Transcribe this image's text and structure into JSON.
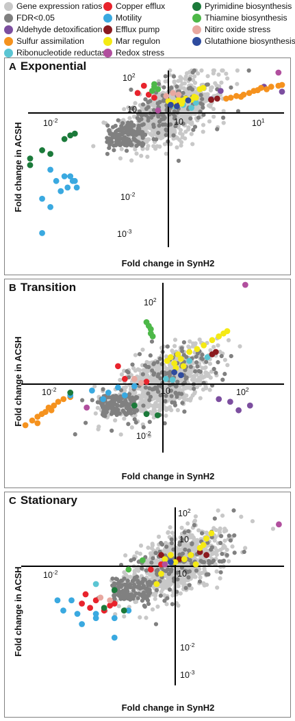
{
  "legend": {
    "items": [
      {
        "label": "Gene expression ratios",
        "color": "#c8c8c8"
      },
      {
        "label": "FDR<0.05",
        "color": "#808080"
      },
      {
        "label": "Aldehyde detoxification",
        "color": "#7c4e9f"
      },
      {
        "label": "Sulfur assimilation",
        "color": "#f5921e"
      },
      {
        "label": "Ribonucleotide reductase",
        "color": "#5bc5d3"
      },
      {
        "label": "Copper efflux",
        "color": "#e8232c"
      },
      {
        "label": "Motility",
        "color": "#3aa9e0"
      },
      {
        "label": "Efflux pump",
        "color": "#8b1a1f"
      },
      {
        "label": "Mar regulon",
        "color": "#f5ea14"
      },
      {
        "label": "Redox stress",
        "color": "#b14f9e"
      },
      {
        "label": "Pyrimidine biosynthesis",
        "color": "#1b7a3a"
      },
      {
        "label": "Thiamine biosynthesis",
        "color": "#4db848"
      },
      {
        "label": "Nitirc oxide stress",
        "color": "#e8a8a0"
      },
      {
        "label": "Glutathione biosynthesis",
        "color": "#2e4b9e"
      }
    ]
  },
  "chart_data": [
    {
      "type": "scatter",
      "panel_letter": "A",
      "title": "Exponential",
      "xlabel": "Fold change in SynH2",
      "ylabel": "Fold change in ACSH",
      "x_ticks": [
        {
          "base": "10",
          "exp": "-2"
        },
        {
          "base": "10",
          "exp": ""
        },
        {
          "base": "10",
          "exp": "1"
        }
      ],
      "y_ticks": [
        {
          "base": "10",
          "exp": "2"
        },
        {
          "base": "10",
          "exp": ""
        },
        {
          "base": "10",
          "exp": "-2"
        },
        {
          "base": "10",
          "exp": "-3"
        }
      ],
      "xlim_log10": [
        -3,
        2
      ],
      "ylim_log10": [
        -3.6,
        2.5
      ],
      "grid": false,
      "series": [
        {
          "name": "Aldehyde detoxification",
          "color": "#7c4e9f",
          "points": [
            [
              5.5,
              6.5
            ],
            [
              8,
              20
            ],
            [
              45,
              35
            ],
            [
              150,
              18
            ]
          ]
        },
        {
          "name": "Sulfur assimilation",
          "color": "#f5921e",
          "points": [
            [
              10,
              7
            ],
            [
              15,
              10
            ],
            [
              20,
              12
            ],
            [
              25,
              15
            ],
            [
              30,
              20
            ],
            [
              40,
              30
            ],
            [
              50,
              25
            ],
            [
              60,
              35
            ],
            [
              80,
              40
            ],
            [
              100,
              45
            ],
            [
              35,
              22
            ],
            [
              18,
              9
            ],
            [
              12,
              8
            ]
          ]
        },
        {
          "name": "Ribonucleotide reductase",
          "color": "#5bc5d3",
          "points": [
            [
              1.3,
              2.5
            ],
            [
              2.5,
              2
            ],
            [
              3,
              4
            ],
            [
              1.8,
              3
            ]
          ]
        },
        {
          "name": "Copper efflux",
          "color": "#e8232c",
          "points": [
            [
              0.22,
              15
            ],
            [
              0.3,
              40
            ],
            [
              0.38,
              12
            ],
            [
              0.5,
              8
            ]
          ]
        },
        {
          "name": "Motility",
          "color": "#3aa9e0",
          "points": [
            [
              0.003,
              0.03
            ],
            [
              0.004,
              0.015
            ],
            [
              0.005,
              0.008
            ],
            [
              0.006,
              0.02
            ],
            [
              0.008,
              0.02
            ],
            [
              0.009,
              0.015
            ],
            [
              0.011,
              0.01
            ],
            [
              0.007,
              0.01
            ],
            [
              0.01,
              0.015
            ],
            [
              0.002,
              0.005
            ],
            [
              0.003,
              0.003
            ],
            [
              0.002,
              0.0006
            ]
          ]
        },
        {
          "name": "Efflux pump",
          "color": "#8b1a1f",
          "points": [
            [
              1.6,
              4
            ],
            [
              5.5,
              6
            ],
            [
              7,
              7
            ]
          ]
        },
        {
          "name": "Mar regulon",
          "color": "#f5ea14",
          "points": [
            [
              1.0,
              5
            ],
            [
              1.2,
              4
            ],
            [
              1.5,
              6
            ],
            [
              1.8,
              5.5
            ],
            [
              2.0,
              7
            ],
            [
              2.5,
              6
            ],
            [
              2.8,
              9
            ],
            [
              3.5,
              25
            ],
            [
              4,
              30
            ],
            [
              1.3,
              3
            ],
            [
              1.7,
              3.5
            ],
            [
              3,
              8
            ]
          ]
        },
        {
          "name": "Redox stress",
          "color": "#b14f9e",
          "points": [
            [
              80,
              400
            ],
            [
              0.6,
              1.4
            ]
          ]
        },
        {
          "name": "Pyrimidine biosynthesis",
          "color": "#1b7a3a",
          "points": [
            [
              0.0004,
              0.06
            ],
            [
              0.0005,
              0.04
            ],
            [
              0.002,
              0.1
            ],
            [
              0.003,
              0.08
            ],
            [
              0.006,
              0.2
            ],
            [
              0.008,
              0.25
            ],
            [
              0.01,
              0.28
            ]
          ]
        },
        {
          "name": "Thiamine biosynthesis",
          "color": "#4db848",
          "points": [
            [
              0.5,
              50
            ],
            [
              0.5,
              35
            ],
            [
              0.6,
              25
            ],
            [
              0.45,
              20
            ]
          ]
        },
        {
          "name": "Nitirc oxide stress",
          "color": "#e8a8a0",
          "points": [
            [
              1.2,
              15
            ],
            [
              1.5,
              12
            ],
            [
              0.9,
              10
            ]
          ]
        },
        {
          "name": "Glutathione biosynthesis",
          "color": "#2e4b9e",
          "points": [
            [
              1.1,
              3
            ],
            [
              1.4,
              2.5
            ],
            [
              2.2,
              5.5
            ]
          ]
        }
      ]
    },
    {
      "type": "scatter",
      "panel_letter": "B",
      "title": "Transition",
      "xlabel": "Fold change in SynH2",
      "ylabel": "Fold change in ACSH",
      "x_ticks": [
        {
          "base": "10",
          "exp": "-2"
        },
        {
          "base": "10",
          "exp": ""
        },
        {
          "base": "10",
          "exp": "2"
        }
      ],
      "y_ticks": [
        {
          "base": "10",
          "exp": "2"
        },
        {
          "base": "10",
          "exp": "-2"
        }
      ],
      "xlim_log10": [
        -2.6,
        3.2
      ],
      "ylim_log10": [
        -3.2,
        3.4
      ],
      "grid": false,
      "series": [
        {
          "name": "Aldehyde detoxification",
          "color": "#7c4e9f",
          "points": [
            [
              30,
              0.2
            ],
            [
              60,
              0.15
            ],
            [
              100,
              0.06
            ],
            [
              200,
              0.1
            ]
          ]
        },
        {
          "name": "Sulfur assimilation",
          "color": "#f5921e",
          "points": [
            [
              0.004,
              0.02
            ],
            [
              0.005,
              0.03
            ],
            [
              0.006,
              0.04
            ],
            [
              0.007,
              0.05
            ],
            [
              0.008,
              0.08
            ],
            [
              0.01,
              0.1
            ],
            [
              0.012,
              0.15
            ],
            [
              0.015,
              0.2
            ],
            [
              0.02,
              0.25
            ],
            [
              0.005,
              0.015
            ],
            [
              0.003,
              0.012
            ],
            [
              0.009,
              0.06
            ]
          ]
        },
        {
          "name": "Ribonucleotide reductase",
          "color": "#5bc5d3",
          "points": [
            [
              1.2,
              1.5
            ],
            [
              1.8,
              1.4
            ],
            [
              15,
              8
            ],
            [
              5,
              6
            ]
          ]
        },
        {
          "name": "Copper efflux",
          "color": "#e8232c",
          "points": [
            [
              0.15,
              4
            ],
            [
              0.2,
              1.5
            ],
            [
              0.5,
              1.2
            ]
          ]
        },
        {
          "name": "Motility",
          "color": "#3aa9e0",
          "points": [
            [
              0.02,
              0.3
            ],
            [
              0.05,
              0.5
            ],
            [
              0.1,
              0.4
            ],
            [
              0.15,
              0.7
            ],
            [
              0.3,
              0.8
            ],
            [
              0.2,
              0.3
            ],
            [
              0.08,
              0.2
            ]
          ]
        },
        {
          "name": "Efflux pump",
          "color": "#8b1a1f",
          "points": [
            [
              20,
              10
            ],
            [
              25,
              12
            ]
          ]
        },
        {
          "name": "Mar regulon",
          "color": "#f5ea14",
          "points": [
            [
              1.3,
              6
            ],
            [
              1.6,
              8
            ],
            [
              2,
              5
            ],
            [
              2.5,
              10
            ],
            [
              3,
              7
            ],
            [
              3.5,
              4
            ],
            [
              5,
              12
            ],
            [
              8,
              15
            ],
            [
              12,
              20
            ],
            [
              20,
              30
            ],
            [
              30,
              40
            ],
            [
              40,
              50
            ],
            [
              50,
              60
            ],
            [
              2.2,
              3.5
            ]
          ]
        },
        {
          "name": "Redox stress",
          "color": "#b14f9e",
          "points": [
            [
              150,
              8000
            ],
            [
              0.04,
              0.08
            ]
          ]
        },
        {
          "name": "Pyrimidine biosynthesis",
          "color": "#1b7a3a",
          "points": [
            [
              0.02,
              0.4
            ],
            [
              0.3,
              0.1
            ],
            [
              0.5,
              0.04
            ],
            [
              0.8,
              0.035
            ]
          ]
        },
        {
          "name": "Thiamine biosynthesis",
          "color": "#4db848",
          "points": [
            [
              0.5,
              120
            ],
            [
              0.55,
              90
            ],
            [
              0.6,
              70
            ],
            [
              0.6,
              50
            ],
            [
              0.65,
              40
            ]
          ]
        },
        {
          "name": "Nitirc oxide stress",
          "color": "#e8a8a0",
          "points": [
            [
              0.3,
              1.5
            ],
            [
              0.4,
              1.1
            ]
          ]
        },
        {
          "name": "Glutathione biosynthesis",
          "color": "#2e4b9e",
          "points": [
            [
              2,
              2.5
            ],
            [
              3,
              2
            ]
          ]
        }
      ]
    },
    {
      "type": "scatter",
      "panel_letter": "C",
      "title": "Stationary",
      "xlabel": "Fold change in SynH2",
      "ylabel": "Fold change in ACSH",
      "x_ticks": [
        {
          "base": "10",
          "exp": "-2"
        },
        {
          "base": "10",
          "exp": ""
        }
      ],
      "y_ticks": [
        {
          "base": "10",
          "exp": "2"
        },
        {
          "base": "10",
          "exp": ""
        },
        {
          "base": "10",
          "exp": "-2"
        },
        {
          "base": "10",
          "exp": "-3"
        }
      ],
      "xlim_log10": [
        -3.3,
        2.1
      ],
      "ylim_log10": [
        -3.5,
        2.5
      ],
      "grid": false,
      "series": [
        {
          "name": "Ribonucleotide reductase",
          "color": "#5bc5d3",
          "points": [
            [
              0.02,
              0.3
            ]
          ]
        },
        {
          "name": "Copper efflux",
          "color": "#e8232c",
          "points": [
            [
              0.01,
              0.08
            ],
            [
              0.015,
              0.06
            ],
            [
              0.02,
              0.1
            ],
            [
              0.03,
              0.05
            ],
            [
              0.04,
              0.07
            ],
            [
              0.05,
              0.08
            ],
            [
              0.012,
              0.15
            ],
            [
              0.3,
              0.8
            ],
            [
              0.5,
              1.2
            ]
          ]
        },
        {
          "name": "Motility",
          "color": "#3aa9e0",
          "points": [
            [
              0.003,
              0.1
            ],
            [
              0.004,
              0.05
            ],
            [
              0.006,
              0.1
            ],
            [
              0.008,
              0.04
            ],
            [
              0.01,
              0.02
            ],
            [
              0.02,
              0.04
            ],
            [
              0.05,
              0.03
            ],
            [
              0.1,
              0.05
            ],
            [
              0.05,
              0.008
            ],
            [
              0.02,
              0.03
            ]
          ]
        },
        {
          "name": "Efflux pump",
          "color": "#8b1a1f",
          "points": [
            [
              0.5,
              3
            ],
            [
              3,
              4
            ],
            [
              4,
              3
            ],
            [
              1.2,
              2
            ]
          ]
        },
        {
          "name": "Mar regulon",
          "color": "#f5ea14",
          "points": [
            [
              0.6,
              2
            ],
            [
              0.8,
              3
            ],
            [
              1.0,
              1.5
            ],
            [
              1.5,
              2
            ],
            [
              2,
              3
            ],
            [
              3,
              6
            ],
            [
              4,
              15
            ],
            [
              5,
              25
            ],
            [
              2.5,
              1.2
            ],
            [
              0.4,
              0.3
            ],
            [
              0.5,
              0.6
            ],
            [
              3.5,
              8
            ]
          ]
        },
        {
          "name": "Redox stress",
          "color": "#b14f9e",
          "points": [
            [
              100,
              60
            ],
            [
              0.6,
              1.2
            ]
          ]
        },
        {
          "name": "Pyrimidine biosynthesis",
          "color": "#1b7a3a",
          "points": [
            [
              0.03,
              0.06
            ],
            [
              0.08,
              0.05
            ],
            [
              0.05,
              0.2
            ]
          ]
        },
        {
          "name": "Thiamine biosynthesis",
          "color": "#4db848",
          "points": [
            [
              0.2,
              1.8
            ],
            [
              0.1,
              0.8
            ]
          ]
        },
        {
          "name": "Nitirc oxide stress",
          "color": "#e8a8a0",
          "points": [
            [
              0.025,
              0.12
            ],
            [
              0.04,
              0.1
            ]
          ]
        },
        {
          "name": "Glutathione biosynthesis",
          "color": "#2e4b9e",
          "points": [
            [
              0.8,
              1.5
            ]
          ]
        }
      ]
    }
  ]
}
